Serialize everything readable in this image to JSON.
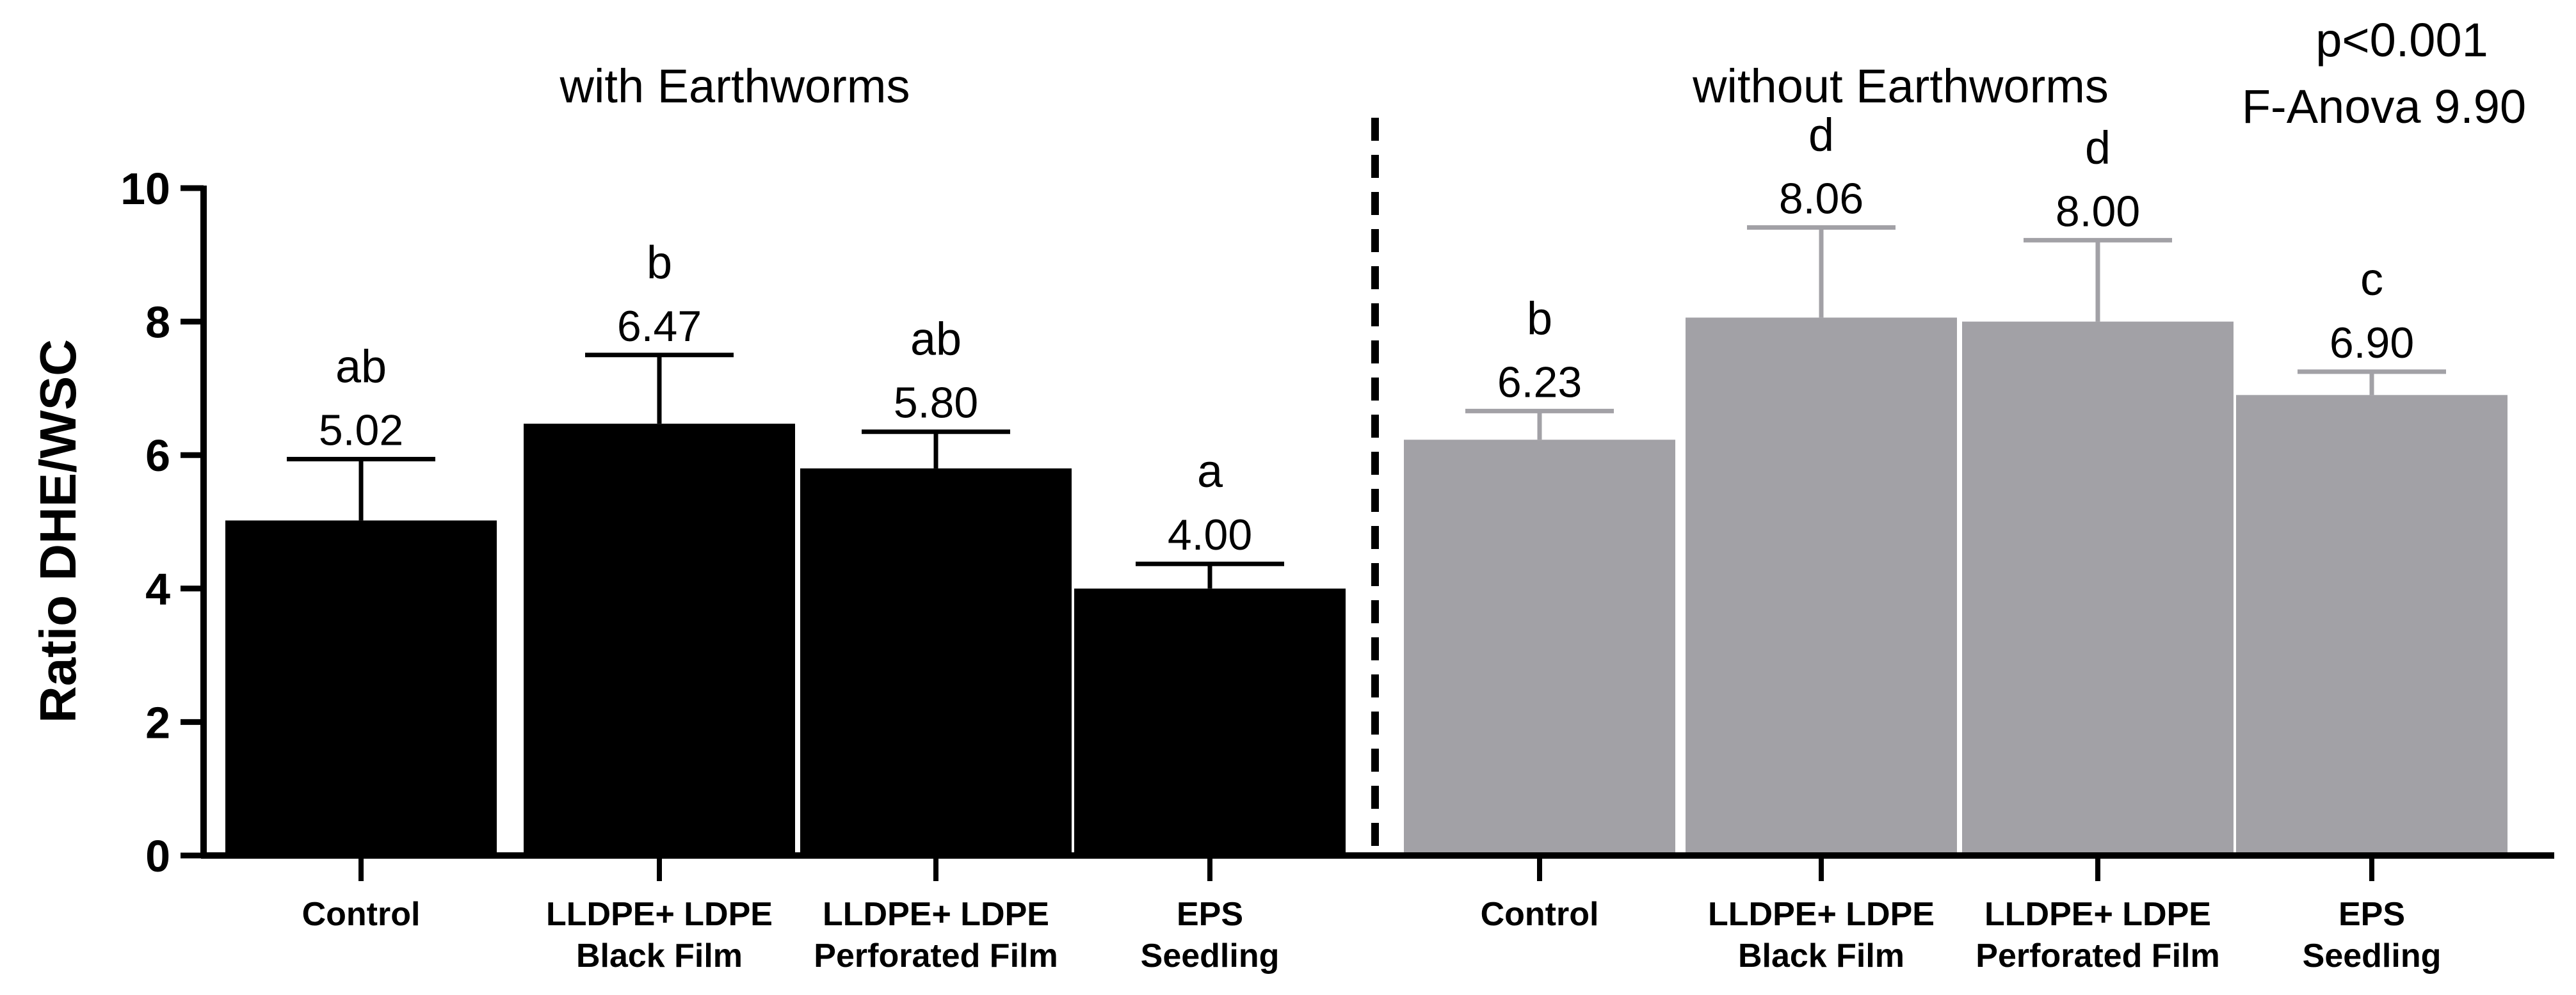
{
  "chart_data": {
    "type": "bar",
    "ylabel": "Ratio DHE/WSC",
    "ylim": [
      0,
      10
    ],
    "yticks": [
      "0",
      "2",
      "4",
      "6",
      "8",
      "10"
    ],
    "stats": {
      "p_value": "p<0.001",
      "anova": "F-Anova 9.90"
    },
    "groups": [
      {
        "title": "with Earthworms",
        "color": "#000000",
        "bars": [
          {
            "category": [
              "Control"
            ],
            "value": 5.02,
            "label": "5.02",
            "letter": "ab",
            "error": 0.92
          },
          {
            "category": [
              "LLDPE+ LDPE",
              "Black Film"
            ],
            "value": 6.47,
            "label": "6.47",
            "letter": "b",
            "error": 1.03
          },
          {
            "category": [
              "LLDPE+ LDPE",
              "Perforated Film"
            ],
            "value": 5.8,
            "label": "5.80",
            "letter": "ab",
            "error": 0.55
          },
          {
            "category": [
              "EPS",
              "Seedling"
            ],
            "value": 4.0,
            "label": "4.00",
            "letter": "a",
            "error": 0.37
          }
        ]
      },
      {
        "title": "without Earthworms",
        "color": "#a2a1a6",
        "bars": [
          {
            "category": [
              "Control"
            ],
            "value": 6.23,
            "label": "6.23",
            "letter": "b",
            "error": 0.43
          },
          {
            "category": [
              "LLDPE+ LDPE",
              "Black Film"
            ],
            "value": 8.06,
            "label": "8.06",
            "letter": "d",
            "error": 1.35
          },
          {
            "category": [
              "LLDPE+ LDPE",
              "Perforated Film"
            ],
            "value": 8.0,
            "label": "8.00",
            "letter": "d",
            "error": 1.22
          },
          {
            "category": [
              "EPS",
              "Seedling"
            ],
            "value": 6.9,
            "label": "6.90",
            "letter": "c",
            "error": 0.35
          }
        ]
      }
    ],
    "divider": "dashed"
  }
}
